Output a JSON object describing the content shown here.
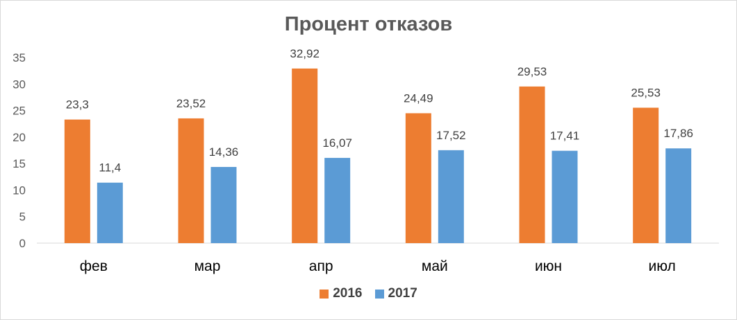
{
  "chart_data": {
    "type": "bar",
    "title": "Процент отказов",
    "categories": [
      "фев",
      "мар",
      "апр",
      "май",
      "июн",
      "июл"
    ],
    "series": [
      {
        "name": "2016",
        "color": "#ED7D31",
        "values": [
          23.3,
          23.52,
          32.92,
          24.49,
          29.53,
          25.53
        ],
        "labels": [
          "23,3",
          "23,52",
          "32,92",
          "24,49",
          "29,53",
          "25,53"
        ]
      },
      {
        "name": "2017",
        "color": "#5B9BD5",
        "values": [
          11.4,
          14.36,
          16.07,
          17.52,
          17.41,
          17.86
        ],
        "labels": [
          "11,4",
          "14,36",
          "16,07",
          "17,52",
          "17,41",
          "17,86"
        ]
      }
    ],
    "ylim": [
      0,
      35
    ],
    "yticks": [
      "0",
      "5",
      "10",
      "15",
      "20",
      "25",
      "30",
      "35"
    ],
    "xlabel": "",
    "ylabel": "",
    "grid": false,
    "legend_position": "bottom"
  }
}
